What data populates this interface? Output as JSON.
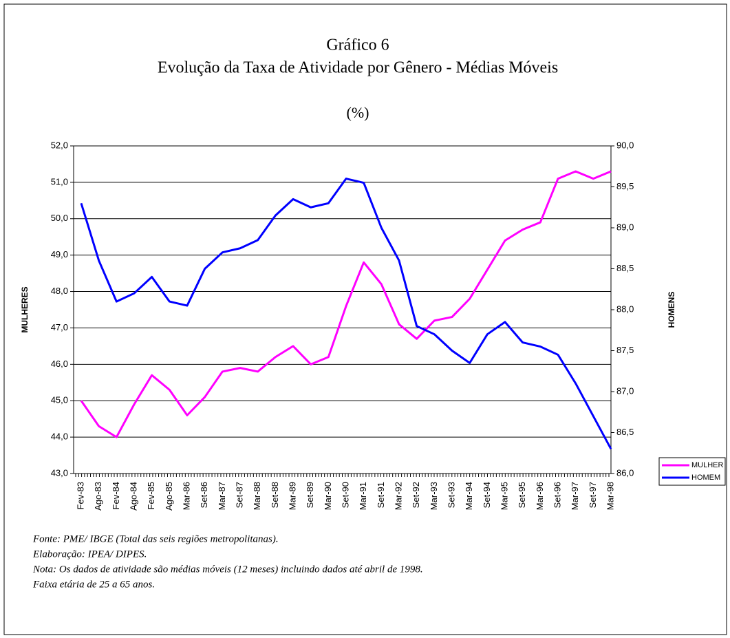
{
  "chart_data": {
    "type": "line",
    "title": "Gráfico 6",
    "subtitle": "Evolução da Taxa de Atividade por Gênero - Médias Móveis",
    "unit_label": "(%)",
    "y_label": "MULHERES",
    "y2_label": "HOMENS",
    "categories": [
      "Fev-83",
      "Ago-83",
      "Fev-84",
      "Ago-84",
      "Fev-85",
      "Ago-85",
      "Mar-86",
      "Set-86",
      "Mar-87",
      "Set-87",
      "Mar-88",
      "Set-88",
      "Mar-89",
      "Set-89",
      "Mar-90",
      "Set-90",
      "Mar-91",
      "Set-91",
      "Mar-92",
      "Set-92",
      "Mar-93",
      "Set-93",
      "Mar-94",
      "Set-94",
      "Mar-95",
      "Set-95",
      "Mar-96",
      "Set-96",
      "Mar-97",
      "Set-97",
      "Mar-98"
    ],
    "series": [
      {
        "name": "MULHER",
        "color": "#ff00ff",
        "axis": "y",
        "values": [
          45.0,
          44.3,
          44.0,
          44.9,
          45.7,
          45.3,
          44.6,
          45.1,
          45.8,
          45.9,
          45.8,
          46.2,
          46.5,
          46.0,
          46.2,
          47.6,
          48.8,
          48.2,
          47.1,
          46.7,
          47.2,
          47.3,
          47.8,
          48.6,
          49.4,
          49.7,
          49.9,
          51.1,
          51.3,
          51.1,
          51.3
        ]
      },
      {
        "name": "HOMEM",
        "color": "#0000ff",
        "axis": "y2",
        "values": [
          89.3,
          88.6,
          88.1,
          88.2,
          88.4,
          88.1,
          88.05,
          88.5,
          88.7,
          88.75,
          88.85,
          89.15,
          89.35,
          89.25,
          89.3,
          89.6,
          89.55,
          89.0,
          88.6,
          87.8,
          87.7,
          87.5,
          87.35,
          87.7,
          87.85,
          87.6,
          87.55,
          87.45,
          87.1,
          86.7,
          86.3
        ]
      }
    ],
    "ylim": [
      43,
      52
    ],
    "yticks": [
      {
        "value": 43,
        "label": "43,0"
      },
      {
        "value": 44,
        "label": "44,0"
      },
      {
        "value": 45,
        "label": "45,0"
      },
      {
        "value": 46,
        "label": "46,0"
      },
      {
        "value": 47,
        "label": "47,0"
      },
      {
        "value": 48,
        "label": "48,0"
      },
      {
        "value": 49,
        "label": "49,0"
      },
      {
        "value": 50,
        "label": "50,0"
      },
      {
        "value": 51,
        "label": "51,0"
      },
      {
        "value": 52,
        "label": "52,0"
      }
    ],
    "y2lim": [
      86,
      90
    ],
    "y2ticks": [
      {
        "value": 86,
        "label": "86,0"
      },
      {
        "value": 86.5,
        "label": "86,5"
      },
      {
        "value": 87,
        "label": "87,0"
      },
      {
        "value": 87.5,
        "label": "87,5"
      },
      {
        "value": 88,
        "label": "88,0"
      },
      {
        "value": 88.5,
        "label": "88,5"
      },
      {
        "value": 89,
        "label": "89,0"
      },
      {
        "value": 89.5,
        "label": "89,5"
      },
      {
        "value": 90,
        "label": "90,0"
      }
    ],
    "grid": true,
    "legend": "right",
    "notes": [
      "Fonte: PME/ IBGE (Total das seis regiões metropolitanas).",
      "Elaboração: IPEA/ DIPES.",
      "Nota: Os dados de atividade são médias móveis (12 meses) incluindo dados até abril de 1998.",
      "Faixa etária de 25 a 65 anos."
    ]
  }
}
